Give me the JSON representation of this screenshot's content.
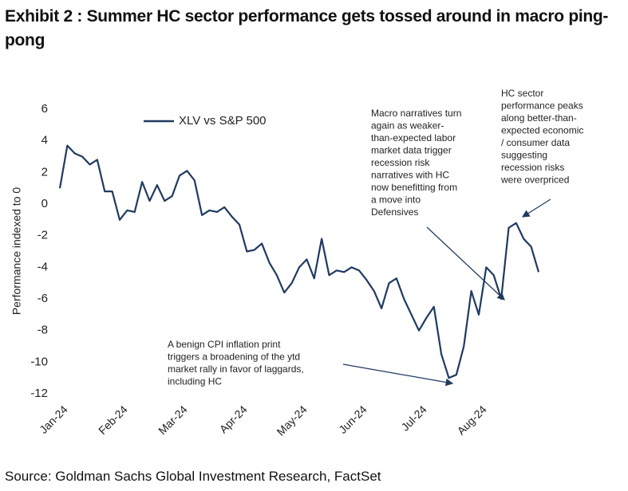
{
  "chart_data": {
    "type": "line",
    "title": "Exhibit 2 : Summer HC sector performance gets tossed around in macro ping-pong",
    "ylabel": "Performance indexed to 0",
    "source": "Source: Goldman Sachs Global Investment Research, FactSet",
    "legend": "upper left",
    "ylim": [
      -12,
      6
    ],
    "yticks": [
      6,
      4,
      2,
      0,
      -2,
      -4,
      -6,
      -8,
      -10,
      -12
    ],
    "categories": [
      "Jan-24",
      null,
      null,
      null,
      null,
      null,
      null,
      null,
      "Feb-24",
      null,
      null,
      null,
      null,
      null,
      null,
      null,
      "Mar-24",
      null,
      null,
      null,
      null,
      null,
      null,
      null,
      "Apr-24",
      null,
      null,
      null,
      null,
      null,
      null,
      null,
      "May-24",
      null,
      null,
      null,
      null,
      null,
      null,
      null,
      "Jun-24",
      null,
      null,
      null,
      null,
      null,
      null,
      null,
      "Jul-24",
      null,
      null,
      null,
      null,
      null,
      null,
      null,
      "Aug-24",
      null,
      null,
      null,
      null,
      null,
      null,
      null,
      null
    ],
    "series": [
      {
        "name": "XLV vs S&P 500",
        "color": "#1f3a60",
        "values": [
          1.0,
          3.7,
          3.2,
          3.0,
          2.5,
          2.8,
          0.8,
          0.8,
          -1.0,
          -0.4,
          -0.5,
          1.4,
          0.2,
          1.2,
          0.2,
          0.5,
          1.8,
          2.1,
          1.5,
          -0.7,
          -0.4,
          -0.5,
          -0.2,
          -0.8,
          -1.3,
          -3.0,
          -2.9,
          -2.5,
          -3.7,
          -4.5,
          -5.6,
          -5.0,
          -4.0,
          -3.5,
          -4.7,
          -2.2,
          -4.5,
          -4.2,
          -4.3,
          -4.0,
          -4.2,
          -4.8,
          -5.5,
          -6.6,
          -5.0,
          -4.7,
          -6.0,
          -7.0,
          -8.0,
          -7.2,
          -6.5,
          -9.5,
          -11.0,
          -10.8,
          -9.0,
          -5.5,
          -7.0,
          -4.0,
          -4.5,
          -6.0,
          -1.5,
          -1.2,
          -2.2,
          -2.7,
          -4.3
        ]
      }
    ],
    "annotations": [
      {
        "lines": [
          "Macro narratives turn",
          "again as weaker-",
          "than-expected labor",
          "market data trigger",
          "recession risk",
          "narratives with HC",
          "now benefitting from",
          "a move into",
          "Defensives"
        ]
      },
      {
        "lines": [
          "HC sector",
          "performance peaks",
          "along better-than-",
          "expected economic",
          "/ consumer data",
          "suggesting",
          "recession risks",
          "were overpriced"
        ]
      },
      {
        "lines": [
          "A benign CPI inflation print",
          "triggers a broadening of the ytd",
          "market rally in favor of laggards,",
          "including HC"
        ]
      }
    ]
  }
}
